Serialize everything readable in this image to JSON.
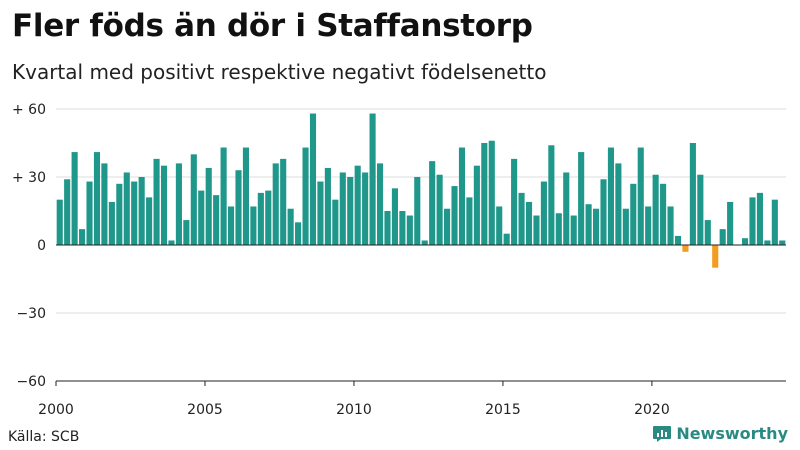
{
  "header": {
    "title": "Fler föds än dör i Staffanstorp",
    "subtitle": "Kvartal med positivt respektive negativt födelsenetto"
  },
  "footer": {
    "source": "Källa: SCB",
    "brand": "Newsworthy",
    "brand_icon": "bar-chart-logo-icon"
  },
  "chart_data": {
    "type": "bar",
    "x_start_year": 2000,
    "periods_per_year": 4,
    "xticks": [
      "2000",
      "2005",
      "2010",
      "2015",
      "2020"
    ],
    "yticks": [
      {
        "value": 60,
        "label": "+ 60"
      },
      {
        "value": 30,
        "label": "+ 30"
      },
      {
        "value": 0,
        "label": "0"
      },
      {
        "value": -30,
        "label": "−30"
      },
      {
        "value": -60,
        "label": "−60"
      }
    ],
    "ylim": [
      -60,
      60
    ],
    "grid": true,
    "colors": {
      "positive": "#1f978a",
      "negative": "#f39c1f",
      "axis": "#222222",
      "grid": "#dddddd"
    },
    "values": [
      20,
      29,
      41,
      7,
      28,
      41,
      36,
      19,
      27,
      32,
      28,
      30,
      21,
      38,
      35,
      2,
      36,
      11,
      40,
      24,
      34,
      22,
      43,
      17,
      33,
      43,
      17,
      23,
      24,
      36,
      38,
      16,
      10,
      43,
      58,
      28,
      34,
      20,
      32,
      30,
      35,
      32,
      58,
      36,
      15,
      25,
      15,
      13,
      30,
      2,
      37,
      31,
      16,
      26,
      43,
      21,
      35,
      45,
      46,
      17,
      5,
      38,
      23,
      19,
      13,
      28,
      44,
      14,
      32,
      13,
      41,
      18,
      16,
      29,
      43,
      36,
      16,
      27,
      43,
      17,
      31,
      27,
      17,
      4,
      -3,
      45,
      31,
      11,
      -10,
      7,
      19,
      0,
      3,
      21,
      23,
      2,
      20,
      2
    ]
  }
}
